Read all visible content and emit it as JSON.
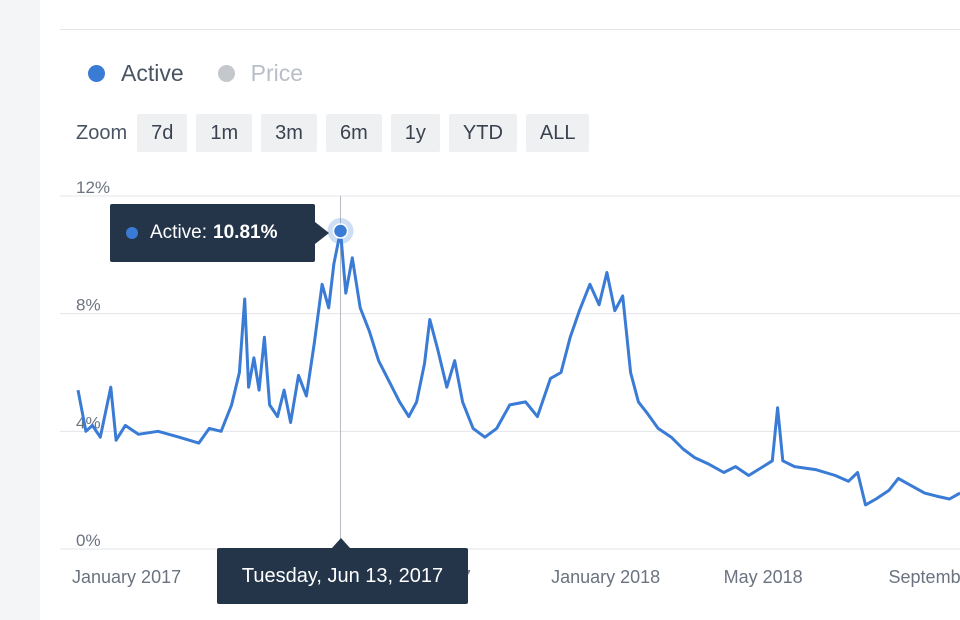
{
  "legend": [
    {
      "label": "Active",
      "color": "#3a7bd5",
      "active": true
    },
    {
      "label": "Price",
      "color": "#c4c7cc",
      "active": false
    }
  ],
  "zoom": {
    "label": "Zoom",
    "options": [
      "7d",
      "1m",
      "3m",
      "6m",
      "1y",
      "YTD",
      "ALL"
    ]
  },
  "tooltip": {
    "series": "Active:",
    "value": "10.81%",
    "date": "Tuesday, Jun 13, 2017"
  },
  "chart_data": {
    "type": "line",
    "series": [
      {
        "name": "Active",
        "color": "#3a7bd5",
        "points": [
          [
            "2016-11-25",
            5.4
          ],
          [
            "2016-12-01",
            4.0
          ],
          [
            "2016-12-06",
            4.2
          ],
          [
            "2016-12-12",
            3.8
          ],
          [
            "2016-12-20",
            5.5
          ],
          [
            "2016-12-24",
            3.7
          ],
          [
            "2016-12-31",
            4.2
          ],
          [
            "2017-01-10",
            3.9
          ],
          [
            "2017-01-25",
            4.0
          ],
          [
            "2017-02-10",
            3.8
          ],
          [
            "2017-02-25",
            3.6
          ],
          [
            "2017-03-05",
            4.1
          ],
          [
            "2017-03-14",
            4.0
          ],
          [
            "2017-03-22",
            4.9
          ],
          [
            "2017-03-28",
            6.0
          ],
          [
            "2017-04-01",
            8.5
          ],
          [
            "2017-04-04",
            5.5
          ],
          [
            "2017-04-08",
            6.5
          ],
          [
            "2017-04-12",
            5.4
          ],
          [
            "2017-04-16",
            7.2
          ],
          [
            "2017-04-20",
            4.9
          ],
          [
            "2017-04-26",
            4.5
          ],
          [
            "2017-05-01",
            5.4
          ],
          [
            "2017-05-06",
            4.3
          ],
          [
            "2017-05-12",
            5.9
          ],
          [
            "2017-05-18",
            5.2
          ],
          [
            "2017-05-24",
            7.0
          ],
          [
            "2017-05-30",
            9.0
          ],
          [
            "2017-06-04",
            8.2
          ],
          [
            "2017-06-08",
            9.7
          ],
          [
            "2017-06-13",
            10.81
          ],
          [
            "2017-06-17",
            8.7
          ],
          [
            "2017-06-22",
            9.9
          ],
          [
            "2017-06-28",
            8.2
          ],
          [
            "2017-07-05",
            7.4
          ],
          [
            "2017-07-12",
            6.4
          ],
          [
            "2017-07-20",
            5.7
          ],
          [
            "2017-07-28",
            5.0
          ],
          [
            "2017-08-04",
            4.5
          ],
          [
            "2017-08-10",
            5.0
          ],
          [
            "2017-08-16",
            6.3
          ],
          [
            "2017-08-20",
            7.8
          ],
          [
            "2017-08-26",
            6.8
          ],
          [
            "2017-09-02",
            5.5
          ],
          [
            "2017-09-08",
            6.4
          ],
          [
            "2017-09-14",
            5.0
          ],
          [
            "2017-09-22",
            4.1
          ],
          [
            "2017-10-01",
            3.8
          ],
          [
            "2017-10-10",
            4.1
          ],
          [
            "2017-10-20",
            4.9
          ],
          [
            "2017-11-01",
            5.0
          ],
          [
            "2017-11-10",
            4.5
          ],
          [
            "2017-11-20",
            5.8
          ],
          [
            "2017-11-28",
            6.0
          ],
          [
            "2017-12-05",
            7.2
          ],
          [
            "2017-12-12",
            8.1
          ],
          [
            "2017-12-20",
            9.0
          ],
          [
            "2017-12-27",
            8.3
          ],
          [
            "2018-01-02",
            9.4
          ],
          [
            "2018-01-08",
            8.1
          ],
          [
            "2018-01-14",
            8.6
          ],
          [
            "2018-01-20",
            6.0
          ],
          [
            "2018-01-26",
            5.0
          ],
          [
            "2018-02-02",
            4.6
          ],
          [
            "2018-02-10",
            4.1
          ],
          [
            "2018-02-20",
            3.8
          ],
          [
            "2018-03-01",
            3.4
          ],
          [
            "2018-03-10",
            3.1
          ],
          [
            "2018-03-20",
            2.9
          ],
          [
            "2018-04-01",
            2.6
          ],
          [
            "2018-04-10",
            2.8
          ],
          [
            "2018-04-20",
            2.5
          ],
          [
            "2018-05-01",
            2.8
          ],
          [
            "2018-05-08",
            3.0
          ],
          [
            "2018-05-12",
            4.8
          ],
          [
            "2018-05-16",
            3.0
          ],
          [
            "2018-05-25",
            2.8
          ],
          [
            "2018-06-10",
            2.7
          ],
          [
            "2018-06-25",
            2.5
          ],
          [
            "2018-07-05",
            2.3
          ],
          [
            "2018-07-12",
            2.6
          ],
          [
            "2018-07-18",
            1.5
          ],
          [
            "2018-07-26",
            1.7
          ],
          [
            "2018-08-05",
            2.0
          ],
          [
            "2018-08-12",
            2.4
          ],
          [
            "2018-08-20",
            2.2
          ],
          [
            "2018-09-01",
            1.9
          ],
          [
            "2018-09-10",
            1.8
          ],
          [
            "2018-09-20",
            1.7
          ],
          [
            "2018-09-28",
            1.9
          ]
        ]
      }
    ],
    "y_ticks": [
      "0%",
      "4%",
      "8%",
      "12%"
    ],
    "y_tick_values": [
      0,
      4,
      8,
      12
    ],
    "ylim": [
      0,
      12
    ],
    "x_ticks": [
      {
        "label": "January 2017",
        "date": "2017-01-01"
      },
      {
        "label": "r 2017",
        "date": "2017-09-01"
      },
      {
        "label": "January 2018",
        "date": "2018-01-01"
      },
      {
        "label": "May 2018",
        "date": "2018-05-01"
      },
      {
        "label": "Septemb",
        "date": "2018-09-01"
      }
    ],
    "highlight": {
      "date": "2017-06-13",
      "value": 10.81
    },
    "grid": true
  }
}
